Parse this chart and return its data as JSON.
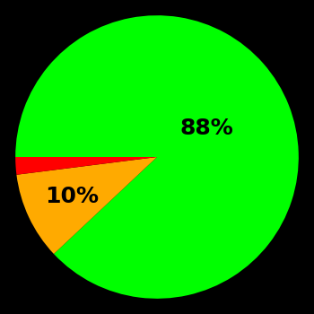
{
  "slices": [
    88,
    10,
    2
  ],
  "colors": [
    "#00ff00",
    "#ffaa00",
    "#ff0000"
  ],
  "labels": [
    "88%",
    "10%",
    ""
  ],
  "background_color": "#000000",
  "text_color": "#000000",
  "startangle": 180,
  "counterclock": false,
  "label_fontsize": 18,
  "label_fontweight": "bold",
  "figsize": [
    3.5,
    3.5
  ],
  "dpi": 100
}
